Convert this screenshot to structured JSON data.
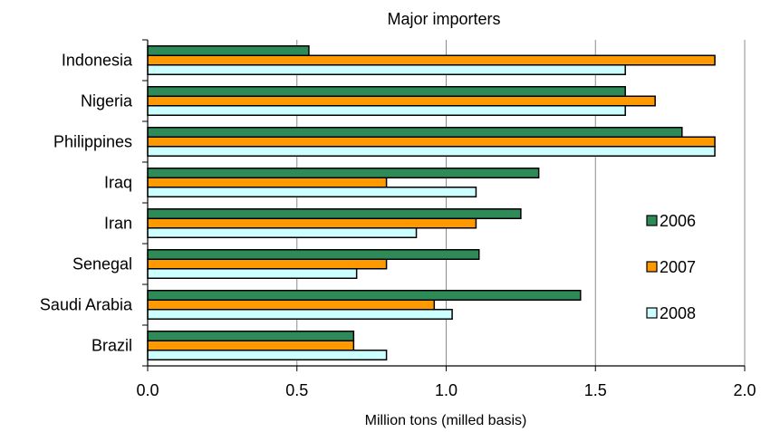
{
  "chart_data": {
    "type": "bar",
    "orientation": "horizontal",
    "title": "Major importers",
    "xlabel": "Million tons (milled basis)",
    "ylabel": "",
    "xlim": [
      0.0,
      2.0
    ],
    "xticks": [
      "0.0",
      "0.5",
      "1.0",
      "1.5",
      "2.0"
    ],
    "xtick_values": [
      0.0,
      0.5,
      1.0,
      1.5,
      2.0
    ],
    "grid": "vertical gridlines",
    "legend_position": "right",
    "categories": [
      "Indonesia",
      "Nigeria",
      "Philippines",
      "Iraq",
      "Iran",
      "Senegal",
      "Saudi Arabia",
      "Brazil"
    ],
    "series": [
      {
        "name": "2006",
        "color": "#2e8b57",
        "values": [
          0.54,
          1.6,
          1.79,
          1.31,
          1.25,
          1.11,
          1.45,
          0.69
        ]
      },
      {
        "name": "2007",
        "color": "#ff9900",
        "values": [
          1.9,
          1.7,
          1.9,
          0.8,
          1.1,
          0.8,
          0.96,
          0.69
        ]
      },
      {
        "name": "2008",
        "color": "#ccffff",
        "values": [
          1.6,
          1.6,
          1.9,
          1.1,
          0.9,
          0.7,
          1.02,
          0.8
        ]
      }
    ]
  }
}
